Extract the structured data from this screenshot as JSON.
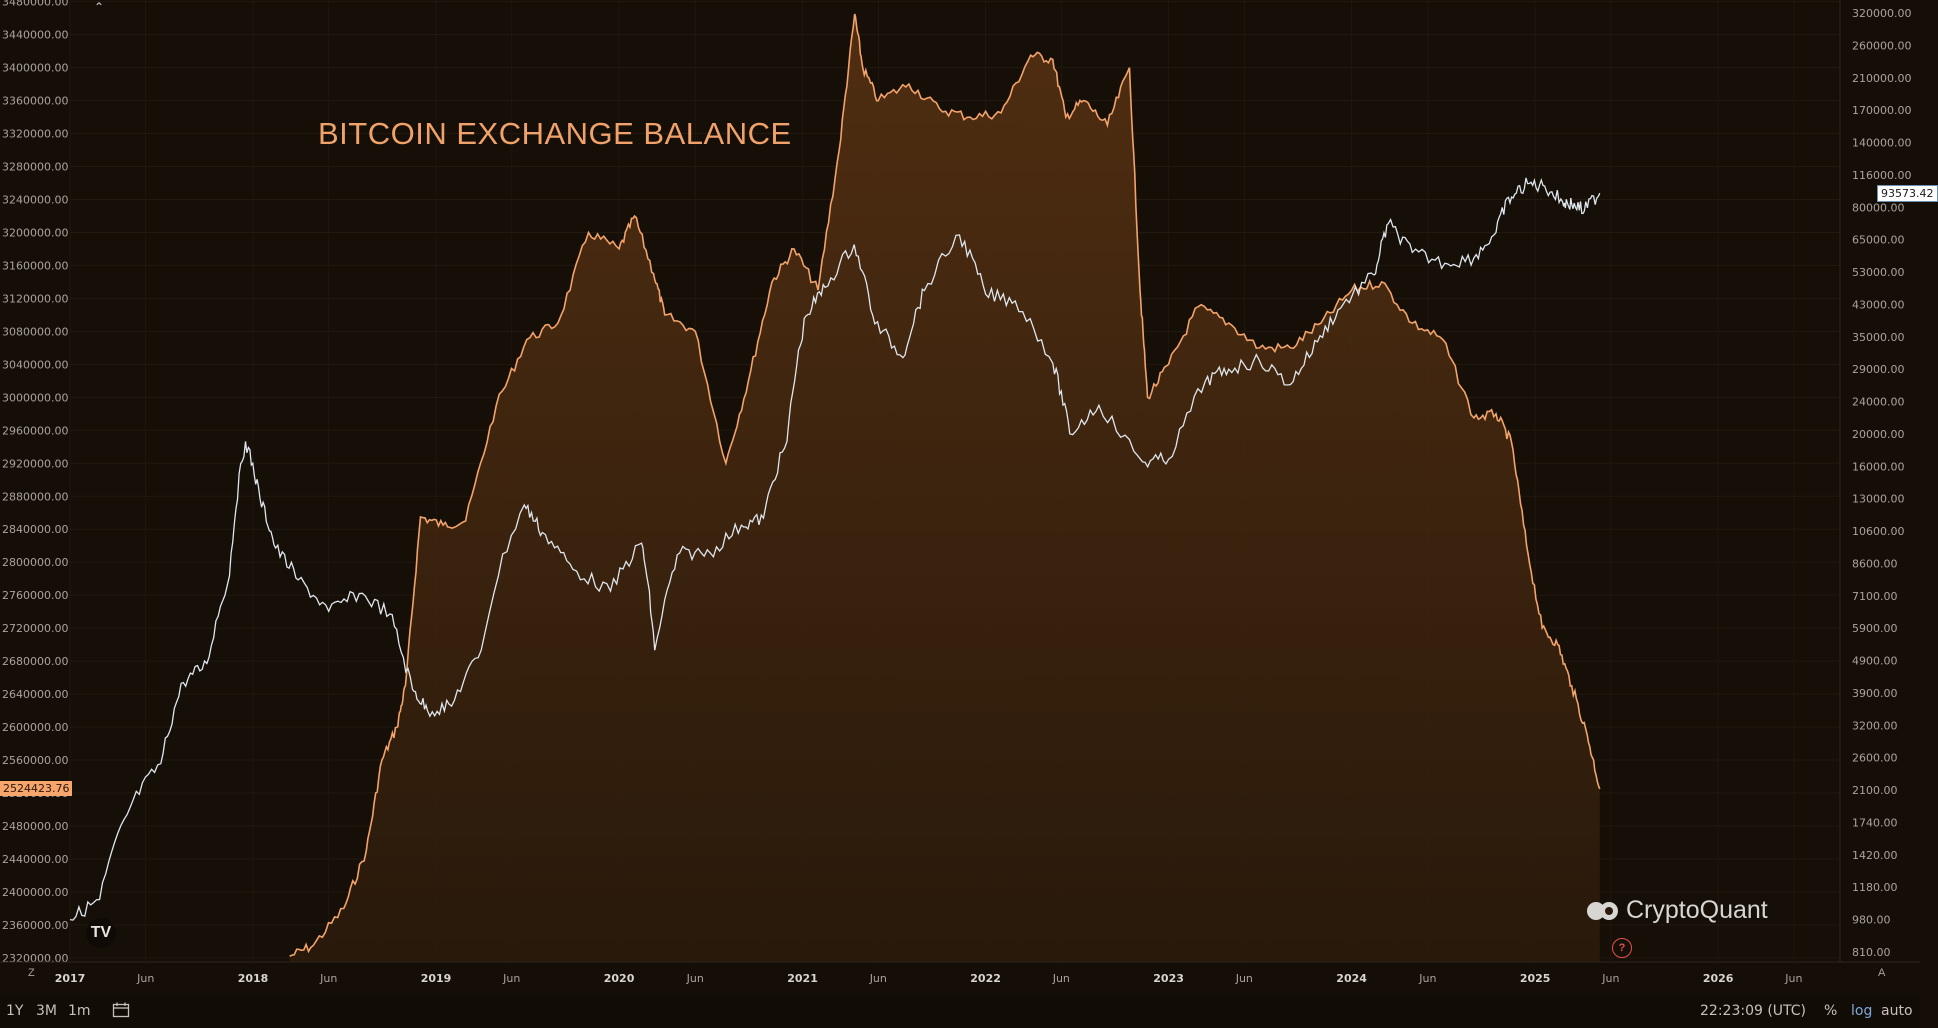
{
  "title": "BITCOIN EXCHANGE BALANCE",
  "brand": "CryptoQuant",
  "price_label": "93573.42",
  "balance_label": "2524423.76",
  "toolbar": {
    "ranges": [
      "1Y",
      "3M",
      "1m"
    ],
    "time": "22:23:09 (UTC)",
    "percent": "%",
    "log": "log",
    "auto": "auto",
    "zoom_reset": "Z",
    "axis_auto": "A"
  },
  "colors": {
    "background": "#140e07",
    "balance": "#f3a36a",
    "price": "#dfe6ee",
    "grid": "#241c13"
  },
  "chart_data": {
    "type": "area",
    "x_axis": {
      "labels": [
        "2017",
        "Jun",
        "2018",
        "Jun",
        "2019",
        "Jun",
        "2020",
        "Jun",
        "2021",
        "Jun",
        "2022",
        "Jun",
        "2023",
        "Jun",
        "2024",
        "Jun",
        "2025",
        "Jun",
        "2026",
        "Jun"
      ],
      "range": [
        "2017-01-01",
        "2026-09-01"
      ]
    },
    "left_axis": {
      "ticks": [
        "2320000.00",
        "2360000.00",
        "2400000.00",
        "2440000.00",
        "2480000.00",
        "2520000.00",
        "2560000.00",
        "2600000.00",
        "2640000.00",
        "2680000.00",
        "2720000.00",
        "2760000.00",
        "2800000.00",
        "2840000.00",
        "2880000.00",
        "2920000.00",
        "2960000.00",
        "3000000.00",
        "3040000.00",
        "3080000.00",
        "3120000.00",
        "3160000.00",
        "3200000.00",
        "3240000.00",
        "3280000.00",
        "3320000.00",
        "3360000.00",
        "3400000.00",
        "3440000.00",
        "3480000.00"
      ],
      "range": [
        2315000,
        3482000
      ]
    },
    "right_axis": {
      "scale": "log",
      "ticks": [
        "810.00",
        "980.00",
        "1180.00",
        "1420.00",
        "1740.00",
        "2100.00",
        "2600.00",
        "3200.00",
        "3900.00",
        "4900.00",
        "5900.00",
        "7100.00",
        "8600.00",
        "10600.00",
        "13000.00",
        "16000.00",
        "20000.00",
        "24000.00",
        "29000.00",
        "35000.00",
        "43000.00",
        "53000.00",
        "65000.00",
        "80000.00",
        "116000.00",
        "140000.00",
        "170000.00",
        "210000.00",
        "260000.00",
        "320000.00"
      ]
    },
    "series": [
      {
        "axis": "left",
        "type": "area",
        "x": [
          "2018-03-15",
          "2018-05-01",
          "2018-07-01",
          "2018-08-15",
          "2018-09-15",
          "2018-10-15",
          "2018-11-01",
          "2018-12-01",
          "2019-01-15",
          "2019-03-01",
          "2019-05-01",
          "2019-07-01",
          "2019-09-01",
          "2019-11-01",
          "2020-01-01",
          "2020-02-01",
          "2020-03-10",
          "2020-04-01",
          "2020-06-01",
          "2020-08-01",
          "2020-09-15",
          "2020-11-01",
          "2020-12-15",
          "2021-02-01",
          "2021-03-15",
          "2021-04-15",
          "2021-05-01",
          "2021-06-01",
          "2021-08-01",
          "2021-10-01",
          "2021-12-01",
          "2022-02-01",
          "2022-04-01",
          "2022-05-15",
          "2022-06-10",
          "2022-07-15",
          "2022-09-01",
          "2022-10-15",
          "2022-11-05",
          "2022-11-20",
          "2023-01-01",
          "2023-03-01",
          "2023-05-01",
          "2023-07-01",
          "2023-09-01",
          "2023-11-01",
          "2024-01-01",
          "2024-03-01",
          "2024-05-01",
          "2024-07-01",
          "2024-09-01",
          "2024-10-15",
          "2024-11-15",
          "2024-12-15",
          "2025-01-15",
          "2025-02-15",
          "2025-03-15",
          "2025-04-15",
          "2025-05-10"
        ],
        "values": [
          2322000,
          2335000,
          2380000,
          2450000,
          2560000,
          2600000,
          2650000,
          2855000,
          2845000,
          2850000,
          2990000,
          3070000,
          3090000,
          3200000,
          3180000,
          3220000,
          3150000,
          3100000,
          3080000,
          2920000,
          3020000,
          3140000,
          3180000,
          3130000,
          3300000,
          3465000,
          3400000,
          3360000,
          3380000,
          3350000,
          3340000,
          3345000,
          3415000,
          3410000,
          3340000,
          3360000,
          3330000,
          3400000,
          3130000,
          3000000,
          3040000,
          3110000,
          3090000,
          3060000,
          3060000,
          3090000,
          3130000,
          3140000,
          3090000,
          3070000,
          2975000,
          2980000,
          2945000,
          2820000,
          2720000,
          2700000,
          2650000,
          2590000,
          2525000
        ]
      },
      {
        "axis": "right",
        "type": "line",
        "x": [
          "2017-01-01",
          "2017-03-01",
          "2017-05-01",
          "2017-07-01",
          "2017-08-15",
          "2017-10-01",
          "2017-11-15",
          "2017-12-17",
          "2018-01-15",
          "2018-02-15",
          "2018-04-01",
          "2018-06-01",
          "2018-08-01",
          "2018-10-01",
          "2018-11-15",
          "2018-12-15",
          "2019-02-01",
          "2019-04-01",
          "2019-06-26",
          "2019-08-01",
          "2019-10-01",
          "2019-12-15",
          "2020-02-15",
          "2020-03-12",
          "2020-05-01",
          "2020-07-01",
          "2020-09-01",
          "2020-10-15",
          "2020-12-01",
          "2021-01-08",
          "2021-02-15",
          "2021-04-14",
          "2021-05-25",
          "2021-07-20",
          "2021-09-01",
          "2021-11-10",
          "2022-01-01",
          "2022-03-01",
          "2022-05-15",
          "2022-06-18",
          "2022-08-15",
          "2022-11-10",
          "2023-01-01",
          "2023-03-15",
          "2023-05-01",
          "2023-07-01",
          "2023-09-01",
          "2023-10-25",
          "2023-12-15",
          "2024-02-15",
          "2024-03-14",
          "2024-05-01",
          "2024-07-05",
          "2024-09-01",
          "2024-10-15",
          "2024-11-15",
          "2024-12-17",
          "2025-01-20",
          "2025-02-25",
          "2025-03-15",
          "2025-04-09",
          "2025-05-10"
        ],
        "values": [
          980,
          1100,
          1900,
          2500,
          4200,
          4800,
          8000,
          19000,
          13000,
          9500,
          7800,
          6500,
          7200,
          6400,
          4000,
          3500,
          3600,
          5200,
          12500,
          10500,
          8300,
          7300,
          9800,
          5200,
          9200,
          9200,
          11000,
          11500,
          19000,
          40000,
          48000,
          63000,
          38000,
          31000,
          47000,
          67000,
          46000,
          44000,
          30000,
          20000,
          23500,
          16500,
          16800,
          27000,
          29000,
          30500,
          26500,
          34000,
          43000,
          52000,
          72000,
          60000,
          56000,
          58000,
          68000,
          90000,
          105000,
          102000,
          85000,
          83000,
          78000,
          94000
        ]
      }
    ]
  }
}
